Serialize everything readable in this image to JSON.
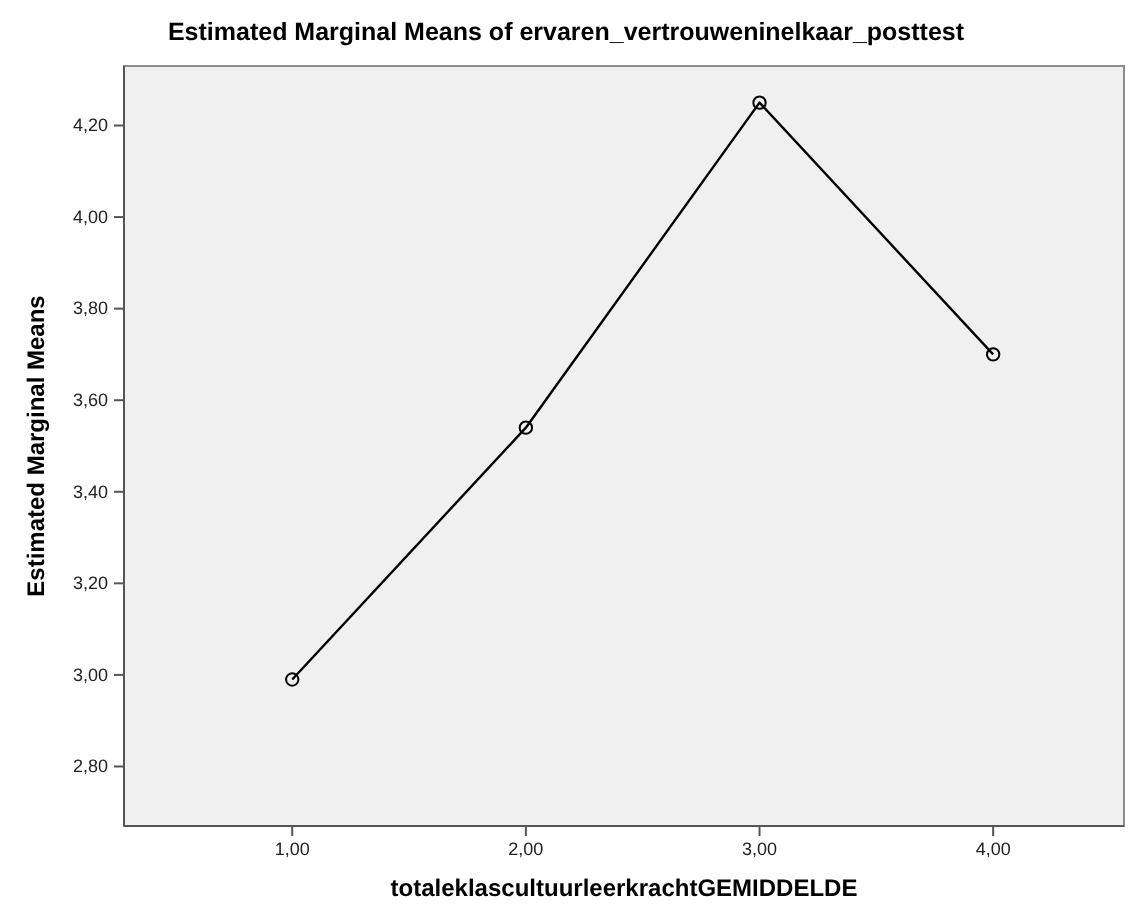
{
  "chart_data": {
    "type": "line",
    "title": "Estimated Marginal Means of ervaren_vertrouweninelkaar_posttest",
    "xlabel": "totaleklascultuurleerkrachtGEMIDDELDE",
    "ylabel": "Estimated Marginal Means",
    "x": [
      1,
      2,
      3,
      4
    ],
    "series": [
      {
        "color": "#000000",
        "values": [
          2.99,
          3.54,
          4.25,
          3.7
        ]
      }
    ],
    "xlim": [
      0.28,
      4.56
    ],
    "xticks": [
      {
        "value": 1,
        "label": "1,00"
      },
      {
        "value": 2,
        "label": "2,00"
      },
      {
        "value": 3,
        "label": "3,00"
      },
      {
        "value": 4,
        "label": "4,00"
      }
    ],
    "ylim": [
      2.67,
      4.33
    ],
    "yticks": [
      {
        "value": 2.8,
        "label": "2,80"
      },
      {
        "value": 3,
        "label": "3,00"
      },
      {
        "value": 3.2,
        "label": "3,20"
      },
      {
        "value": 3.4,
        "label": "3,40"
      },
      {
        "value": 3.6,
        "label": "3,60"
      },
      {
        "value": 3.8,
        "label": "3,80"
      },
      {
        "value": 4,
        "label": "4,00"
      },
      {
        "value": 4.2,
        "label": "4,20"
      }
    ],
    "marker": "circle",
    "grid": false
  }
}
